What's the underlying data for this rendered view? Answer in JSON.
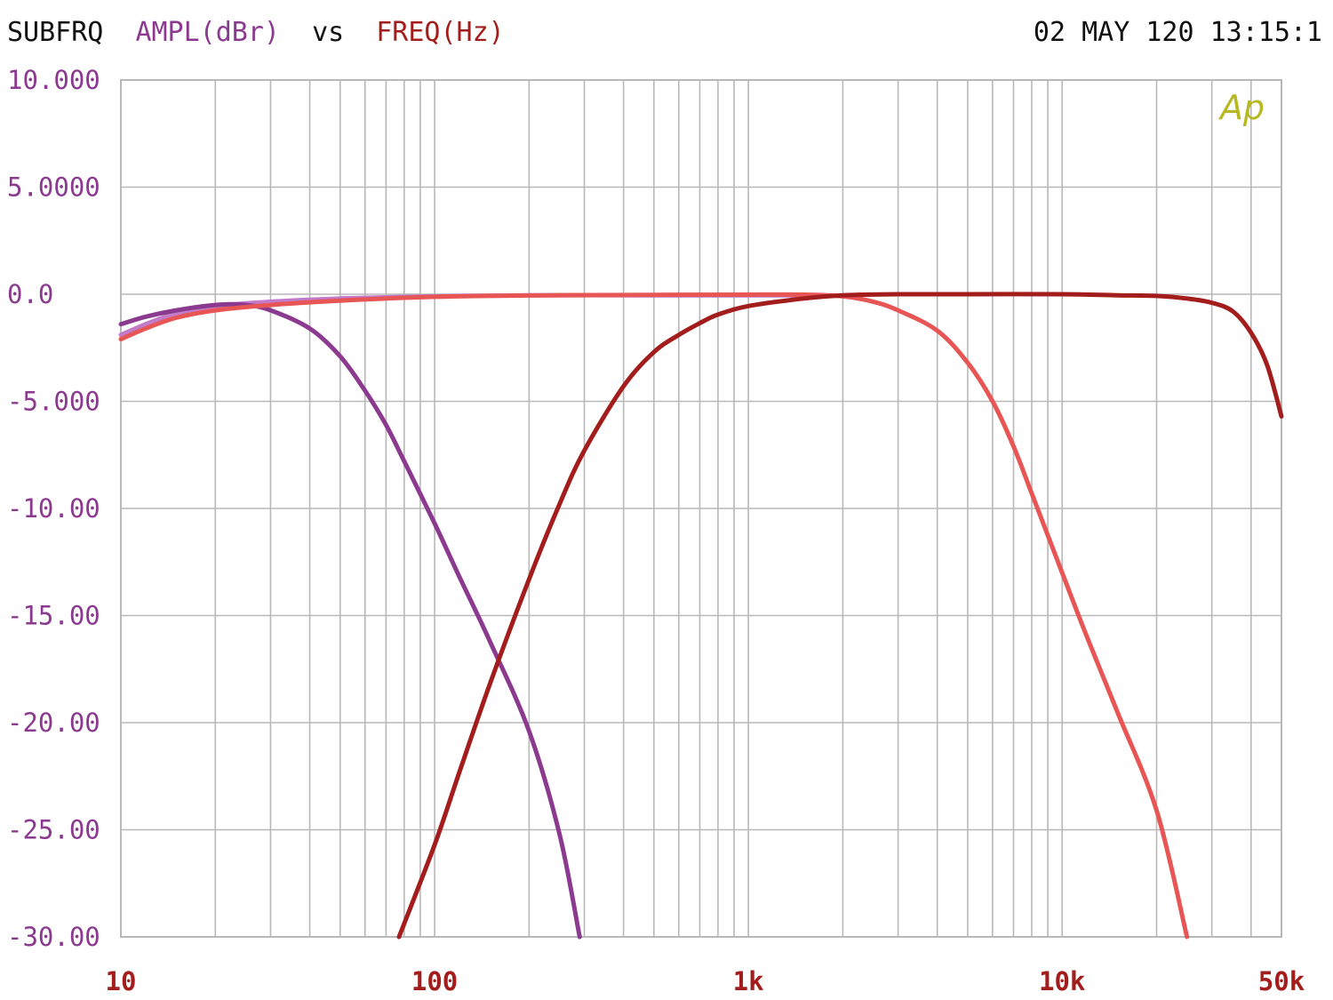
{
  "header": {
    "title_prefix": "SUBFRQ",
    "y_quantity": "AMPL(dBr)",
    "connector": "vs",
    "x_quantity": "FREQ(Hz)",
    "timestamp": "02 MAY 120 13:15:1"
  },
  "logo": {
    "text": "Ap",
    "color": "#b5b820"
  },
  "colors": {
    "text": "#111111",
    "y_label": "#8b3a8f",
    "x_label": "#a31d1d",
    "grid": "#b8b8b8"
  },
  "chart_data": {
    "type": "line",
    "xlabel": "FREQ(Hz)",
    "ylabel": "AMPL(dBr)",
    "x_scale": "log",
    "xlim": [
      10,
      50000
    ],
    "ylim": [
      -30,
      10
    ],
    "grid": true,
    "x_ticks": [
      {
        "value": 10,
        "label": "10"
      },
      {
        "value": 100,
        "label": "100"
      },
      {
        "value": 1000,
        "label": "1k"
      },
      {
        "value": 10000,
        "label": "10k"
      },
      {
        "value": 50000,
        "label": "50k"
      }
    ],
    "y_ticks": [
      {
        "value": 10,
        "label": "10.000"
      },
      {
        "value": 5,
        "label": "5.0000"
      },
      {
        "value": 0,
        "label": "0.0"
      },
      {
        "value": -5,
        "label": "-5.000"
      },
      {
        "value": -10,
        "label": "-10.00"
      },
      {
        "value": -15,
        "label": "-15.00"
      },
      {
        "value": -20,
        "label": "-20.00"
      },
      {
        "value": -25,
        "label": "-25.00"
      },
      {
        "value": -30,
        "label": "-30.00"
      }
    ],
    "series": [
      {
        "color": "#c27ac9",
        "points": [
          [
            10,
            -1.9
          ],
          [
            12,
            -1.4
          ],
          [
            15,
            -0.9
          ],
          [
            20,
            -0.55
          ],
          [
            30,
            -0.35
          ],
          [
            50,
            -0.2
          ],
          [
            100,
            -0.1
          ],
          [
            200,
            -0.05
          ],
          [
            500,
            -0.05
          ],
          [
            1000,
            -0.05
          ],
          [
            1500,
            -0.05
          ]
        ]
      },
      {
        "color": "#8b3a8f",
        "points": [
          [
            10,
            -1.4
          ],
          [
            12,
            -1.05
          ],
          [
            15,
            -0.75
          ],
          [
            20,
            -0.5
          ],
          [
            25,
            -0.5
          ],
          [
            30,
            -0.75
          ],
          [
            40,
            -1.6
          ],
          [
            50,
            -2.9
          ],
          [
            60,
            -4.5
          ],
          [
            70,
            -6.1
          ],
          [
            80,
            -7.8
          ],
          [
            100,
            -10.7
          ],
          [
            120,
            -13.2
          ],
          [
            150,
            -16.2
          ],
          [
            200,
            -20.4
          ],
          [
            250,
            -25.2
          ],
          [
            290,
            -30
          ]
        ]
      },
      {
        "color": "#e85555",
        "points": [
          [
            10,
            -2.1
          ],
          [
            12,
            -1.6
          ],
          [
            15,
            -1.1
          ],
          [
            20,
            -0.75
          ],
          [
            30,
            -0.5
          ],
          [
            50,
            -0.3
          ],
          [
            100,
            -0.12
          ],
          [
            200,
            -0.06
          ],
          [
            500,
            -0.03
          ],
          [
            1000,
            -0.02
          ],
          [
            1500,
            -0.02
          ],
          [
            2000,
            -0.1
          ],
          [
            2500,
            -0.35
          ],
          [
            3000,
            -0.75
          ],
          [
            4000,
            -1.7
          ],
          [
            5000,
            -3.2
          ],
          [
            6000,
            -5.0
          ],
          [
            7000,
            -7.1
          ],
          [
            8000,
            -9.3
          ],
          [
            10000,
            -13.0
          ],
          [
            12000,
            -16.0
          ],
          [
            15000,
            -19.5
          ],
          [
            20000,
            -24.1
          ],
          [
            25000,
            -30
          ]
        ]
      },
      {
        "color": "#a31d1d",
        "points": [
          [
            77,
            -30
          ],
          [
            100,
            -25.7
          ],
          [
            120,
            -22.3
          ],
          [
            150,
            -18.2
          ],
          [
            200,
            -13.3
          ],
          [
            250,
            -9.8
          ],
          [
            300,
            -7.3
          ],
          [
            400,
            -4.3
          ],
          [
            500,
            -2.7
          ],
          [
            600,
            -1.9
          ],
          [
            700,
            -1.35
          ],
          [
            800,
            -0.95
          ],
          [
            1000,
            -0.55
          ],
          [
            1500,
            -0.2
          ],
          [
            2000,
            -0.05
          ],
          [
            3000,
            0.0
          ],
          [
            5000,
            0.0
          ],
          [
            10000,
            0.0
          ],
          [
            15000,
            -0.05
          ],
          [
            20000,
            -0.08
          ],
          [
            25000,
            -0.2
          ],
          [
            30000,
            -0.4
          ],
          [
            35000,
            -0.8
          ],
          [
            40000,
            -1.8
          ],
          [
            45000,
            -3.3
          ],
          [
            50000,
            -5.7
          ]
        ]
      }
    ]
  }
}
